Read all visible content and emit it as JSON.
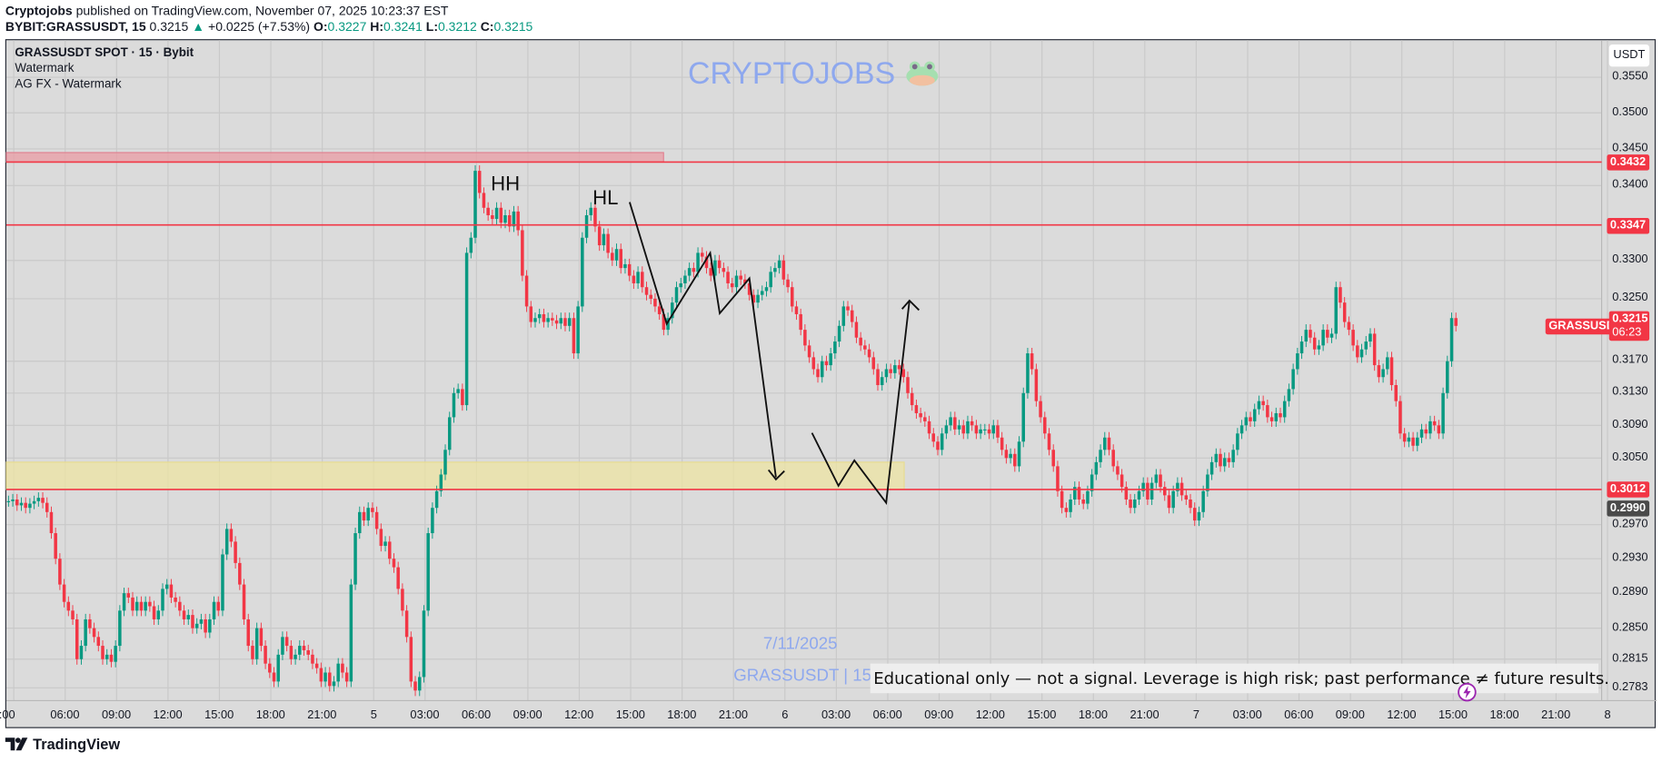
{
  "header": {
    "author": "Cryptojobs",
    "published": "published on TradingView.com, November 07, 2025 10:23:37 EST",
    "symbol_line": "BYBIT:GRASSUSDT, 15",
    "last": "0.3215",
    "change": "+0.0225 (+7.53%)",
    "o_label": "O:",
    "o": "0.3227",
    "h_label": "H:",
    "h": "0.3241",
    "l_label": "L:",
    "l": "0.3212",
    "c_label": "C:",
    "c": "0.3215"
  },
  "legend": {
    "title": "GRASSUSDT SPOT · 15 · Bybit",
    "indicator1": "Watermark",
    "indicator2": "AG FX - Watermark"
  },
  "watermark": {
    "brand": "CRYPTOJOBS",
    "date": "7/11/2025",
    "symbol": "GRASSUSDT | 15"
  },
  "disclaimer": "Educational only — not a signal. Leverage is high risk; past performance ≠ future results.",
  "annotations": {
    "hh": "HH",
    "hl": "HL"
  },
  "price_axis": {
    "currency_button": "USDT",
    "badge_symbol": "GRASSUSDT",
    "badge_price": "0.3215",
    "badge_countdown": "06:23"
  },
  "footer": {
    "logo_text": "TradingView"
  },
  "colors": {
    "up": "#089981",
    "down": "#f23645",
    "level": "#f23645",
    "watermark": "#8ea8ee",
    "support_zone": "#f0e6a0",
    "resistance_zone": "#e8a0a8",
    "background": "#dbdbdb"
  },
  "chart_data": {
    "type": "candlestick",
    "interval": "15",
    "y_scale": "log",
    "grid": true,
    "ylim": [
      0.2765,
      0.358
    ],
    "y_ticks": [
      "0.3550",
      "0.3500",
      "0.3450",
      "0.3400",
      "0.3300",
      "0.3250",
      "0.3170",
      "0.3130",
      "0.3090",
      "0.3050",
      "0.2970",
      "0.2930",
      "0.2890",
      "0.2850",
      "0.2815",
      "0.2783"
    ],
    "x_ticks": [
      ":00",
      "06:00",
      "09:00",
      "12:00",
      "15:00",
      "18:00",
      "21:00",
      "5",
      "03:00",
      "06:00",
      "09:00",
      "12:00",
      "15:00",
      "18:00",
      "21:00",
      "6",
      "03:00",
      "06:00",
      "09:00",
      "12:00",
      "15:00",
      "18:00",
      "21:00",
      "7",
      "03:00",
      "06:00",
      "09:00",
      "12:00",
      "15:00",
      "18:00",
      "21:00",
      "8"
    ],
    "levels": [
      {
        "price": 0.3432,
        "label": "0.3432"
      },
      {
        "price": 0.3347,
        "label": "0.3347"
      },
      {
        "price": 0.3012,
        "label": "0.3012"
      }
    ],
    "marker_price": {
      "price": 0.299,
      "label": "0.2990"
    },
    "resistance_zone": [
      0.3432,
      0.3445
    ],
    "support_zone": [
      0.3012,
      0.3045
    ],
    "closes": [
      0.2998,
      0.3,
      0.2993,
      0.2996,
      0.299,
      0.2995,
      0.2998,
      0.3002,
      0.2996,
      0.2985,
      0.296,
      0.293,
      0.29,
      0.288,
      0.287,
      0.286,
      0.2815,
      0.283,
      0.286,
      0.285,
      0.284,
      0.283,
      0.2815,
      0.282,
      0.2812,
      0.283,
      0.287,
      0.289,
      0.2885,
      0.287,
      0.288,
      0.287,
      0.288,
      0.2875,
      0.286,
      0.287,
      0.2895,
      0.29,
      0.2885,
      0.288,
      0.287,
      0.286,
      0.2865,
      0.285,
      0.2855,
      0.286,
      0.2845,
      0.286,
      0.288,
      0.287,
      0.2935,
      0.2965,
      0.295,
      0.2925,
      0.29,
      0.286,
      0.283,
      0.2815,
      0.285,
      0.283,
      0.281,
      0.28,
      0.279,
      0.282,
      0.284,
      0.283,
      0.2815,
      0.282,
      0.283,
      0.2825,
      0.282,
      0.281,
      0.2805,
      0.279,
      0.28,
      0.2785,
      0.279,
      0.281,
      0.28,
      0.279,
      0.29,
      0.296,
      0.2985,
      0.2975,
      0.299,
      0.2985,
      0.2965,
      0.2945,
      0.295,
      0.293,
      0.292,
      0.2895,
      0.287,
      0.284,
      0.279,
      0.278,
      0.2795,
      0.287,
      0.296,
      0.299,
      0.301,
      0.303,
      0.306,
      0.31,
      0.313,
      0.3135,
      0.3115,
      0.331,
      0.333,
      0.342,
      0.339,
      0.337,
      0.336,
      0.3355,
      0.337,
      0.335,
      0.336,
      0.3345,
      0.3365,
      0.334,
      0.328,
      0.324,
      0.322,
      0.3225,
      0.323,
      0.322,
      0.3225,
      0.3222,
      0.3218,
      0.3225,
      0.3215,
      0.3225,
      0.318,
      0.324,
      0.333,
      0.336,
      0.337,
      0.3345,
      0.332,
      0.3335,
      0.331,
      0.33,
      0.3315,
      0.329,
      0.3295,
      0.328,
      0.327,
      0.3285,
      0.3265,
      0.3255,
      0.325,
      0.324,
      0.323,
      0.321,
      0.3225,
      0.3245,
      0.3265,
      0.327,
      0.328,
      0.329,
      0.3285,
      0.331,
      0.3305,
      0.329,
      0.328,
      0.33,
      0.329,
      0.3285,
      0.327,
      0.3265,
      0.328,
      0.3275,
      0.327,
      0.3255,
      0.3245,
      0.3255,
      0.326,
      0.3265,
      0.3285,
      0.329,
      0.33,
      0.3275,
      0.3265,
      0.324,
      0.323,
      0.321,
      0.319,
      0.3175,
      0.316,
      0.315,
      0.317,
      0.3165,
      0.318,
      0.3195,
      0.3215,
      0.324,
      0.3235,
      0.322,
      0.32,
      0.319,
      0.3185,
      0.3175,
      0.316,
      0.314,
      0.315,
      0.316,
      0.3155,
      0.3165,
      0.316,
      0.315,
      0.313,
      0.3115,
      0.3105,
      0.31,
      0.3095,
      0.308,
      0.307,
      0.306,
      0.308,
      0.309,
      0.31,
      0.3085,
      0.309,
      0.308,
      0.3095,
      0.309,
      0.308,
      0.3085,
      0.3085,
      0.308,
      0.309,
      0.3075,
      0.306,
      0.305,
      0.3055,
      0.304,
      0.307,
      0.313,
      0.318,
      0.316,
      0.312,
      0.31,
      0.308,
      0.306,
      0.304,
      0.301,
      0.299,
      0.2985,
      0.3,
      0.3015,
      0.3,
      0.2995,
      0.301,
      0.303,
      0.3045,
      0.306,
      0.3075,
      0.306,
      0.304,
      0.303,
      0.3015,
      0.3,
      0.299,
      0.3,
      0.301,
      0.302,
      0.3,
      0.302,
      0.303,
      0.3015,
      0.3005,
      0.299,
      0.301,
      0.302,
      0.3005,
      0.3,
      0.299,
      0.2975,
      0.2985,
      0.301,
      0.303,
      0.3045,
      0.3055,
      0.304,
      0.305,
      0.3045,
      0.306,
      0.308,
      0.309,
      0.31,
      0.3095,
      0.311,
      0.312,
      0.3115,
      0.31,
      0.3095,
      0.3105,
      0.31,
      0.312,
      0.3135,
      0.316,
      0.318,
      0.3195,
      0.321,
      0.32,
      0.3185,
      0.319,
      0.321,
      0.32,
      0.3205,
      0.3265,
      0.3245,
      0.322,
      0.321,
      0.319,
      0.3175,
      0.3185,
      0.3195,
      0.3205,
      0.3165,
      0.315,
      0.316,
      0.3175,
      0.314,
      0.312,
      0.308,
      0.307,
      0.3075,
      0.3065,
      0.3075,
      0.3085,
      0.308,
      0.3095,
      0.309,
      0.308,
      0.313,
      0.317,
      0.3225,
      0.3215
    ]
  }
}
